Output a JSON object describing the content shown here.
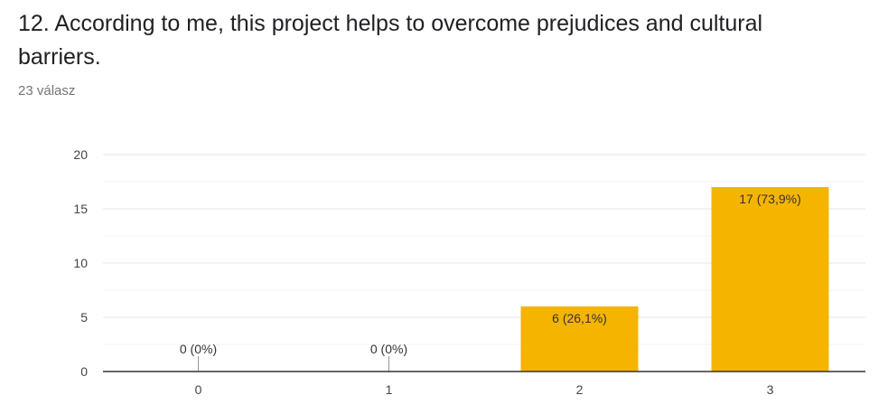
{
  "question": {
    "title": "12. According to me, this project helps to overcome prejudices and cultural barriers.",
    "response_count": "23 válasz"
  },
  "colors": {
    "bar": "#F4B400",
    "grid": "#e6e6e6",
    "axis": "#333333",
    "tick_text": "#444444",
    "label_text": "#333333"
  },
  "chart_data": {
    "type": "bar",
    "categories": [
      "0",
      "1",
      "2",
      "3"
    ],
    "values": [
      0,
      0,
      6,
      17
    ],
    "data_labels": [
      "0 (0%)",
      "0 (0%)",
      "6 (26,1%)",
      "17 (73,9%)"
    ],
    "y_ticks": [
      "0",
      "5",
      "10",
      "15",
      "20"
    ],
    "ylim": [
      0,
      20
    ],
    "grid": true,
    "legend": "none",
    "title": "",
    "xlabel": "",
    "ylabel": ""
  }
}
